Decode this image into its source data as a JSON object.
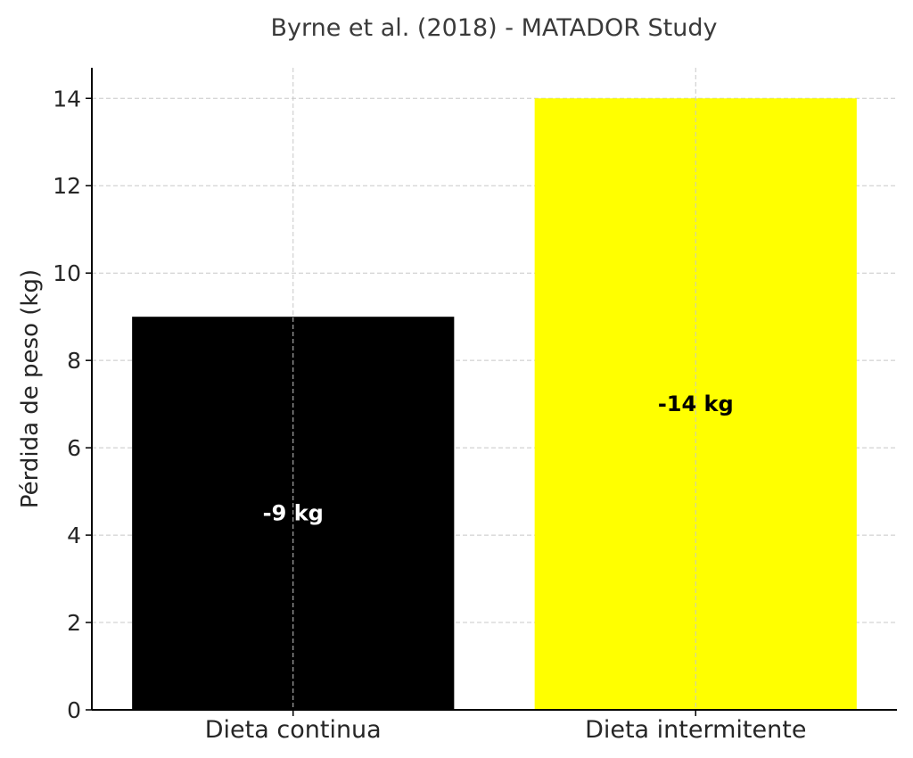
{
  "chart_data": {
    "type": "bar",
    "title": "Byrne et al. (2018) - MATADOR Study",
    "xlabel": "",
    "ylabel": "Pérdida de peso (kg)",
    "categories": [
      "Dieta continua",
      "Dieta intermitente"
    ],
    "values": [
      9,
      14
    ],
    "data_labels": [
      "-9 kg",
      "-14 kg"
    ],
    "colors": [
      "#000000",
      "#ffff00"
    ],
    "label_colors": [
      "#ffffff",
      "#000000"
    ],
    "ylim": [
      0,
      14.7
    ],
    "yticks": [
      0,
      2,
      4,
      6,
      8,
      10,
      12,
      14
    ],
    "grid": true
  }
}
